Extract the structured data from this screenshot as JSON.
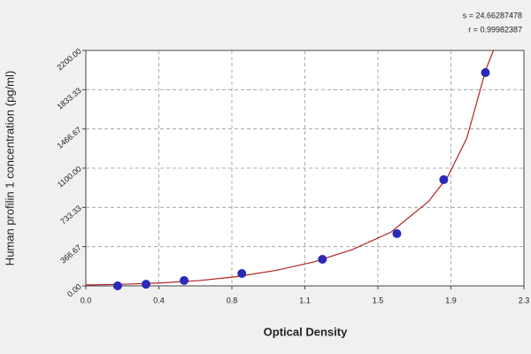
{
  "chart_data": {
    "type": "scatter",
    "stats": [
      "s = 24.66287478",
      "r = 0.99982387"
    ],
    "x_label": "Optical Density",
    "y_label": "Human profilin 1 concentration (pg/ml)",
    "xlim": [
      0,
      2.3
    ],
    "xticks": [
      {
        "value": 0,
        "label": "0.0"
      },
      {
        "value": 0.3833,
        "label": "0.4"
      },
      {
        "value": 0.7667,
        "label": "0.8"
      },
      {
        "value": 1.15,
        "label": "1.1"
      },
      {
        "value": 1.5333,
        "label": "1.5"
      },
      {
        "value": 1.9167,
        "label": "1.9"
      },
      {
        "value": 2.3,
        "label": "2.3"
      }
    ],
    "ylim": [
      0,
      2200
    ],
    "yticks": [
      {
        "value": 0,
        "label": "0.00"
      },
      {
        "value": 366.67,
        "label": "366.67"
      },
      {
        "value": 733.33,
        "label": "733.33"
      },
      {
        "value": 1100,
        "label": "1100.00"
      },
      {
        "value": 1466.67,
        "label": "1466.67"
      },
      {
        "value": 1833.33,
        "label": "1833.33"
      },
      {
        "value": 2200,
        "label": "2200.00"
      }
    ],
    "grid": true,
    "series": [
      {
        "mode": "markers",
        "color": "#2a2ab8",
        "x": [
          0.167,
          0.316,
          0.516,
          0.819,
          1.242,
          1.633,
          1.879,
          2.098
        ],
        "values": [
          0,
          15,
          50,
          116,
          248,
          488,
          992,
          1993
        ]
      },
      {
        "mode": "line",
        "color": "#b22222",
        "x": [
          0,
          0.2,
          0.4,
          0.6,
          0.8,
          1.0,
          1.2,
          1.4,
          1.6,
          1.8,
          1.9,
          2.0,
          2.1,
          2.14
        ],
        "values": [
          8,
          15,
          28,
          50,
          88,
          145,
          225,
          340,
          500,
          790,
          1020,
          1380,
          2020,
          2200
        ]
      }
    ]
  }
}
